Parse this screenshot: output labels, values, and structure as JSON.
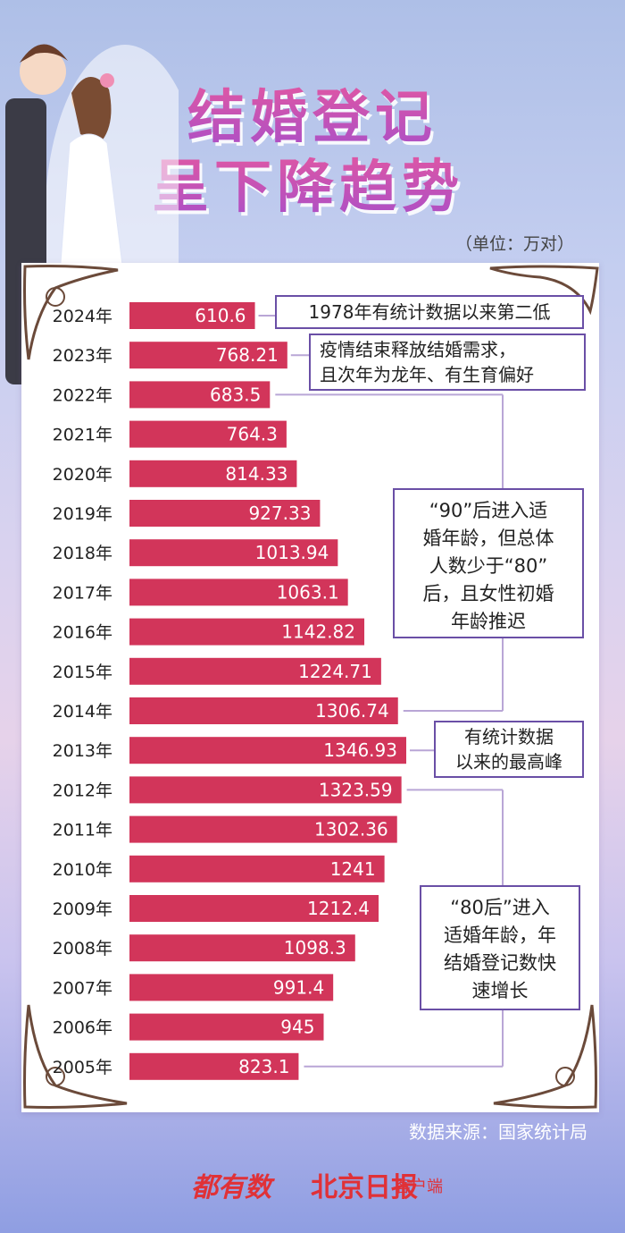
{
  "title": {
    "line1": "结婚登记",
    "line2": "呈下降趋势"
  },
  "unit_label": "（单位：万对）",
  "annotations": {
    "note_1978": "1978年有统计数据以来第二低",
    "note_2023_l1": "疫情结束释放结婚需求，",
    "note_2023_l2": "且次年为龙年、有生育偏好",
    "note_90_l1": "“90”后进入适",
    "note_90_l2": "婚年龄，但总体",
    "note_90_l3": "人数少于“80”",
    "note_90_l4": "后，且女性初婚",
    "note_90_l5": "年龄推迟",
    "note_peak_l1": "有统计数据",
    "note_peak_l2": "以来的最高峰",
    "note_80_l1": "“80后”进入",
    "note_80_l2": "适婚年龄，年",
    "note_80_l3": "结婚登记数快",
    "note_80_l4": "速增长"
  },
  "source": "数据来源：国家统计局",
  "logos": {
    "logo1": "都有数",
    "logo2": "北京日报",
    "logo3": "客户端"
  },
  "colors": {
    "bar": "#d2355a",
    "bracket": "#b9a6d6",
    "note_border": "#6a4fa6"
  },
  "chart_data": {
    "type": "bar",
    "orientation": "horizontal",
    "categories": [
      "2024年",
      "2023年",
      "2022年",
      "2021年",
      "2020年",
      "2019年",
      "2018年",
      "2017年",
      "2016年",
      "2015年",
      "2014年",
      "2013年",
      "2012年",
      "2011年",
      "2010年",
      "2009年",
      "2008年",
      "2007年",
      "2006年",
      "2005年"
    ],
    "values": [
      610.6,
      768.21,
      683.5,
      764.3,
      814.33,
      927.33,
      1013.94,
      1063.1,
      1142.82,
      1224.71,
      1306.74,
      1346.93,
      1323.59,
      1302.36,
      1241,
      1212.4,
      1098.3,
      991.4,
      945,
      823.1
    ],
    "value_labels": [
      "610.6",
      "768.21",
      "683.5",
      "764.3",
      "814.33",
      "927.33",
      "1013.94",
      "1063.1",
      "1142.82",
      "1224.71",
      "1306.74",
      "1346.93",
      "1323.59",
      "1302.36",
      "1241",
      "1212.4",
      "1098.3",
      "991.4",
      "945",
      "823.1"
    ],
    "title": "",
    "xlabel": "",
    "ylabel": "",
    "grid": false
  }
}
